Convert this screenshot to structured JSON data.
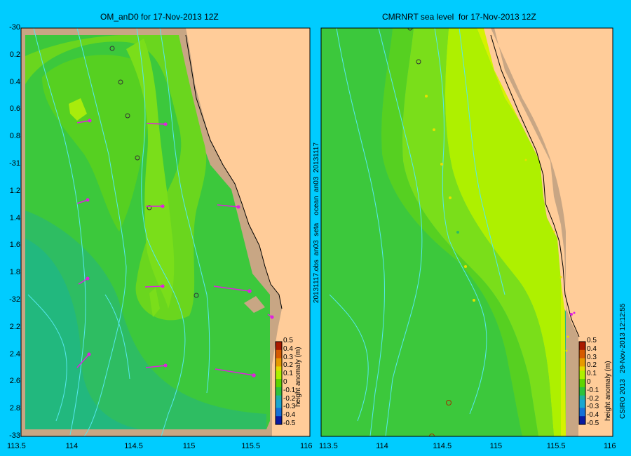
{
  "left_panel": {
    "title": "OM_anD0 for 17-Nov-2013 12Z",
    "y_ticks": [
      "-30",
      "0.2",
      "0.4",
      "0.6",
      "0.8",
      "-31",
      "1.2",
      "1.4",
      "1.6",
      "1.8",
      "-32",
      "2.2",
      "2.4",
      "2.6",
      "2.8",
      "-33"
    ],
    "x_ticks": [
      "113.5",
      "114",
      "114.5",
      "115",
      "115.5",
      "116"
    ]
  },
  "right_panel": {
    "title": "CMRNRT sea level  for 17-Nov-2013 12Z",
    "x_ticks": [
      "113.5",
      "114",
      "114.5",
      "115",
      "115.5",
      "116"
    ]
  },
  "side_label": "20131117.obs  an03  seta    ocean  an03  20131117",
  "credit": "CSIRO 2013   29-Nov-2013 12:12:55",
  "colorbar": {
    "title": "height anomaly (m)",
    "labels": [
      "0.5",
      "0.4",
      "0.3",
      "0.2",
      "0.1",
      "0",
      "-0.1",
      "-0.2",
      "-0.3",
      "-0.4",
      "-0.5"
    ],
    "colors": [
      "#aa1a00",
      "#d65a00",
      "#e89a00",
      "#e6d800",
      "#aef000",
      "#5fd400",
      "#2ec23c",
      "#1fb1a0",
      "#1aa6d0",
      "#1570d8",
      "#0a1aa0"
    ]
  },
  "colors": {
    "land": "#ffcc99",
    "shelf": "#c8a684",
    "background": "#00ccff",
    "vector": "#e020e0"
  }
}
